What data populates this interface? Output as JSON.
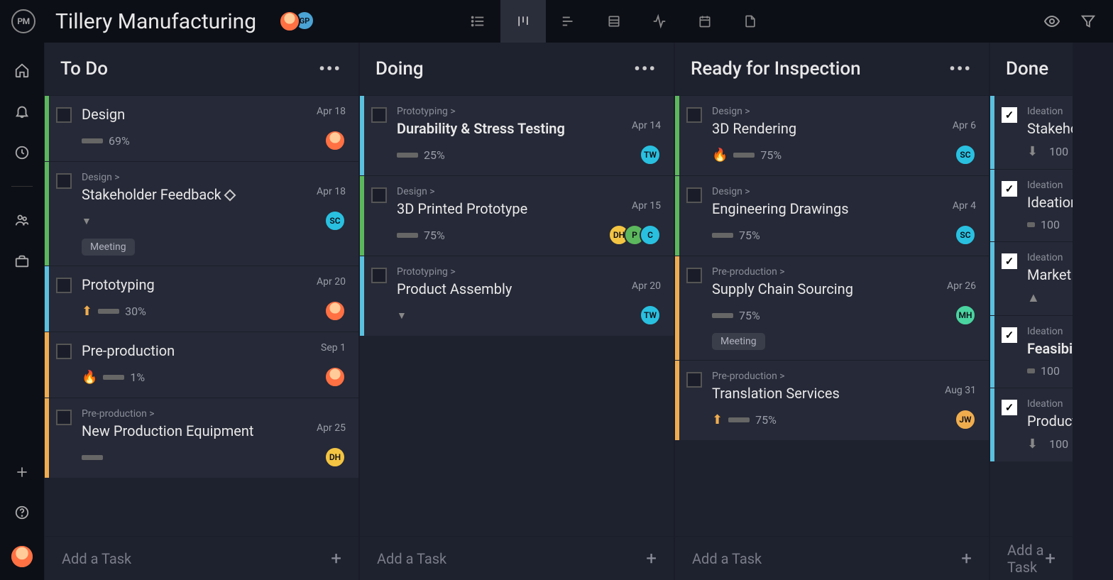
{
  "app": {
    "logo_text": "PM"
  },
  "project": {
    "title": "Tillery Manufacturing"
  },
  "topbar": {
    "avatars": [
      {
        "type": "face",
        "bg": "#ff8c42"
      },
      {
        "label": "GP",
        "bg": "#4aa3d4"
      }
    ]
  },
  "columns": [
    {
      "title": "To Do",
      "add_label": "Add a Task",
      "cards": [
        {
          "edge": "green",
          "title": "Design",
          "date": "Apr 18",
          "progress": "69%",
          "avatars": [
            {
              "type": "face"
            }
          ]
        },
        {
          "edge": "green",
          "parent": "Design >",
          "title": "Stakeholder Feedback",
          "milestone": true,
          "date": "Apr 18",
          "chevron": true,
          "avatars": [
            {
              "label": "SC",
              "bg": "#29c0e0"
            }
          ],
          "tag": "Meeting"
        },
        {
          "edge": "blue",
          "title": "Prototyping",
          "date": "Apr 20",
          "priority": "up-orange",
          "progress": "30%",
          "avatars": [
            {
              "type": "face"
            }
          ]
        },
        {
          "edge": "orange",
          "title": "Pre-production",
          "date": "Sep 1",
          "priority": "fire",
          "progress": "1%",
          "avatars": [
            {
              "type": "face"
            }
          ]
        },
        {
          "edge": "orange",
          "parent": "Pre-production >",
          "title": "New Production Equipment",
          "date": "Apr 25",
          "progress": "",
          "avatars": [
            {
              "label": "DH",
              "bg": "#f4c542"
            }
          ]
        }
      ]
    },
    {
      "title": "Doing",
      "add_label": "Add a Task",
      "cards": [
        {
          "edge": "blue",
          "parent": "Prototyping >",
          "title": "Durability & Stress Testing",
          "bold": true,
          "date": "Apr 14",
          "progress": "25%",
          "avatars": [
            {
              "label": "TW",
              "bg": "#29c0e0"
            }
          ]
        },
        {
          "edge": "green",
          "parent": "Design >",
          "title": "3D Printed Prototype",
          "date": "Apr 15",
          "progress": "75%",
          "avatars": [
            {
              "label": "DH",
              "bg": "#f4c542"
            },
            {
              "label": "P",
              "bg": "#5cb85c"
            },
            {
              "label": "C",
              "bg": "#29c0e0"
            }
          ]
        },
        {
          "edge": "blue",
          "parent": "Prototyping >",
          "title": "Product Assembly",
          "date": "Apr 20",
          "chevron": true,
          "avatars": [
            {
              "label": "TW",
              "bg": "#29c0e0"
            }
          ]
        }
      ]
    },
    {
      "title": "Ready for Inspection",
      "add_label": "Add a Task",
      "cards": [
        {
          "edge": "green",
          "parent": "Design >",
          "title": "3D Rendering",
          "date": "Apr 6",
          "priority": "fire",
          "progress": "75%",
          "avatars": [
            {
              "label": "SC",
              "bg": "#29c0e0"
            }
          ]
        },
        {
          "edge": "green",
          "parent": "Design >",
          "title": "Engineering Drawings",
          "date": "Apr 4",
          "progress": "75%",
          "avatars": [
            {
              "label": "SC",
              "bg": "#29c0e0"
            }
          ]
        },
        {
          "edge": "orange",
          "parent": "Pre-production >",
          "title": "Supply Chain Sourcing",
          "date": "Apr 26",
          "progress": "75%",
          "avatars": [
            {
              "label": "MH",
              "bg": "#4ad4a0"
            }
          ],
          "tag": "Meeting"
        },
        {
          "edge": "orange",
          "parent": "Pre-production >",
          "title": "Translation Services",
          "date": "Aug 31",
          "priority": "up-orange",
          "progress": "75%",
          "avatars": [
            {
              "label": "JW",
              "bg": "#f0ad4e"
            }
          ]
        }
      ]
    },
    {
      "title": "Done",
      "narrow": true,
      "add_label": "Add a Task",
      "cards": [
        {
          "edge": "blue",
          "parent": "Ideation",
          "title": "Stakeholder",
          "done": true,
          "priority": "down-gray",
          "progress": "100"
        },
        {
          "edge": "blue",
          "parent": "Ideation",
          "title": "Ideation",
          "done": true,
          "progress": "100"
        },
        {
          "edge": "blue",
          "parent": "Ideation",
          "title": "Market",
          "done": true,
          "priority": "up-gray"
        },
        {
          "edge": "blue",
          "parent": "Ideation",
          "title": "Feasibility",
          "bold": true,
          "done": true,
          "progress": "100"
        },
        {
          "edge": "blue",
          "parent": "Ideation",
          "title": "Product",
          "done": true,
          "priority": "down-gray",
          "progress": "100"
        }
      ]
    }
  ]
}
